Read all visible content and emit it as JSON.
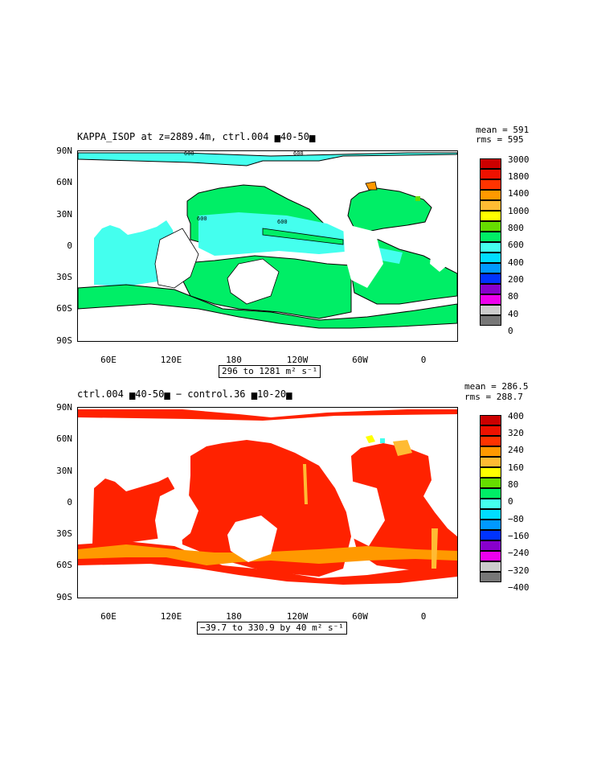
{
  "panel1": {
    "title": "KAPPA_ISOP at z=2889.4m, ctrl.004 ▅40-50▅",
    "stats": {
      "mean": "mean = 591",
      "rms": "rms = 595"
    },
    "range": "296 to 1281 m² s⁻¹",
    "colorbar_labels": [
      "3000",
      "1800",
      "1400",
      "1000",
      "800",
      "600",
      "400",
      "200",
      "80",
      "40",
      "0"
    ],
    "colorbar_colors": [
      "#cc0000",
      "#ee1100",
      "#ff3300",
      "#ff9900",
      "#ffbb33",
      "#ffff00",
      "#66dd00",
      "#00ee66",
      "#44ffee",
      "#00ddff",
      "#0099ff",
      "#0033ff",
      "#8800cc",
      "#ee00ee",
      "#cccccc",
      "#777777"
    ],
    "contour_labels": [
      "600",
      "600",
      "600",
      "600"
    ]
  },
  "panel2": {
    "title": "ctrl.004 ▅40-50▅ − control.36 ▅10-20▅",
    "stats": {
      "mean": "mean = 286.5",
      "rms": "rms = 288.7"
    },
    "range": "−39.7 to 330.9 by 40 m² s⁻¹",
    "colorbar_labels": [
      "400",
      "320",
      "240",
      "160",
      "80",
      "0",
      "−80",
      "−160",
      "−240",
      "−320",
      "−400"
    ]
  },
  "axes": {
    "y_ticks": [
      "90N",
      "60N",
      "30N",
      "0",
      "30S",
      "60S",
      "90S"
    ],
    "x_ticks": [
      "60E",
      "120E",
      "180",
      "120W",
      "60W",
      "0"
    ]
  },
  "chart_data": [
    {
      "type": "heatmap",
      "title": "KAPPA_ISOP at z=2889.4m, ctrl.004 ▅40-50▅",
      "mean": 591,
      "rms": 595,
      "value_range": [
        296,
        1281
      ],
      "units": "m² s⁻¹",
      "colorbar_levels": [
        0,
        40,
        80,
        200,
        400,
        600,
        800,
        1000,
        1400,
        1800,
        3000
      ],
      "dominant_colors": [
        "#00ee66",
        "#44ffee"
      ],
      "contour_level_labelled": 600
    },
    {
      "type": "heatmap",
      "title": "ctrl.004 ▅40-50▅ − control.36 ▅10-20▅",
      "mean": 286.5,
      "rms": 288.7,
      "value_range": [
        -39.7,
        330.9
      ],
      "contour_interval": 40,
      "units": "m² s⁻¹",
      "colorbar_levels": [
        -400,
        -320,
        -240,
        -160,
        -80,
        0,
        80,
        160,
        240,
        320,
        400
      ],
      "dominant_colors": [
        "#ff2200",
        "#ff9900"
      ]
    }
  ]
}
